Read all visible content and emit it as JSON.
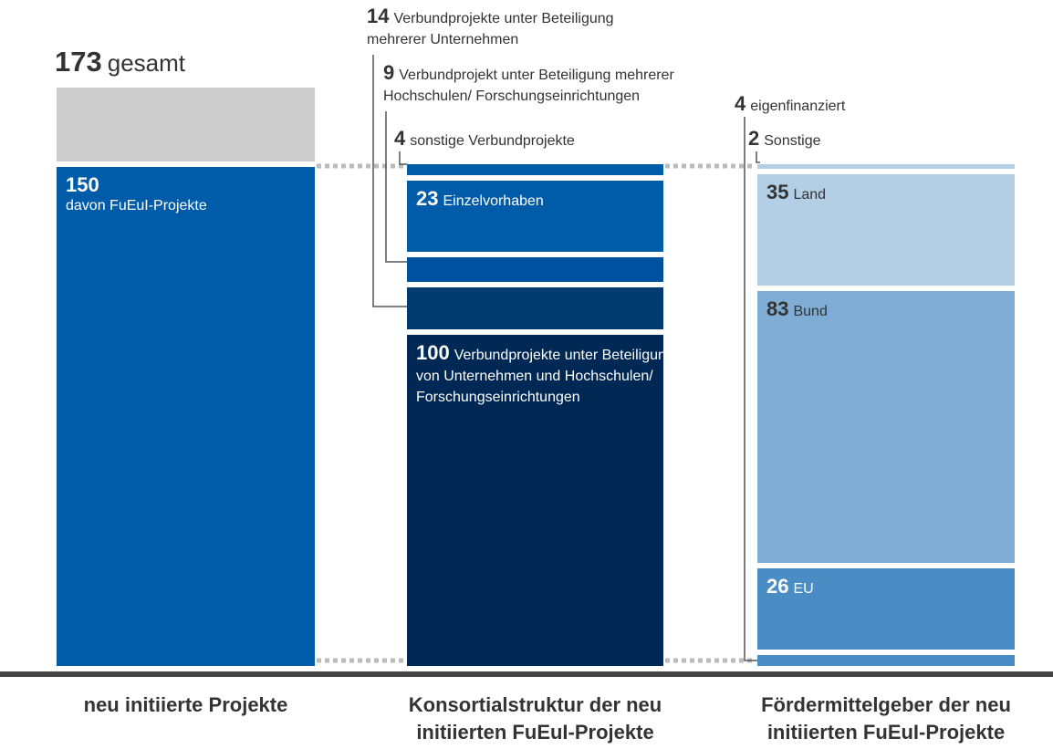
{
  "chart_data": {
    "type": "stacked-bar",
    "columns": [
      {
        "label": "neu initiierte Projekte",
        "total": 173,
        "total_label": "gesamt",
        "total_color": "#cccccc",
        "segments": [
          {
            "value": 150,
            "label": "davon FuEuI-Projekte",
            "color": "#005ca9",
            "label_color": "#ffffff"
          }
        ]
      },
      {
        "label": "Konsortialstruktur der neu initiierten FuEuI-Projekte",
        "segments": [
          {
            "value": 100,
            "label": "Verbundprojekte unter Beteiligung von Unternehmen und Hochschulen/ Forschungseinrichtungen",
            "color": "#002855",
            "label_color": "#ffffff"
          },
          {
            "value": 14,
            "label": "Verbundprojekte unter Beteiligung mehrerer Unternehmen",
            "color": "#003b6f",
            "label_color": "#333333"
          },
          {
            "value": 9,
            "label": "Verbundprojekt unter Beteiligung mehrerer Hochschulen/ Forschungseinrichtungen",
            "color": "#0052a0",
            "label_color": "#333333"
          },
          {
            "value": 23,
            "label": "Einzelvorhaben",
            "color": "#005ca9",
            "label_color": "#ffffff"
          },
          {
            "value": 4,
            "label": "sonstige Verbundprojekte",
            "color": "#005ca9",
            "label_color": "#333333"
          }
        ]
      },
      {
        "label": "Fördermittelgeber der neu initiierten FuEuI-Projekte",
        "segments": [
          {
            "value": 4,
            "label": "eigenfinanziert",
            "color": "#4a8cc4",
            "label_color": "#333333"
          },
          {
            "value": 26,
            "label": "EU",
            "color": "#4a8cc4",
            "label_color": "#ffffff"
          },
          {
            "value": 83,
            "label": "Bund",
            "color": "#7fadd6",
            "label_color": "#333333"
          },
          {
            "value": 35,
            "label": "Land",
            "color": "#b3cfe6",
            "label_color": "#333333"
          },
          {
            "value": 2,
            "label": "Sonstige",
            "color": "#b3cfe6",
            "label_color": "#333333"
          }
        ]
      }
    ]
  }
}
